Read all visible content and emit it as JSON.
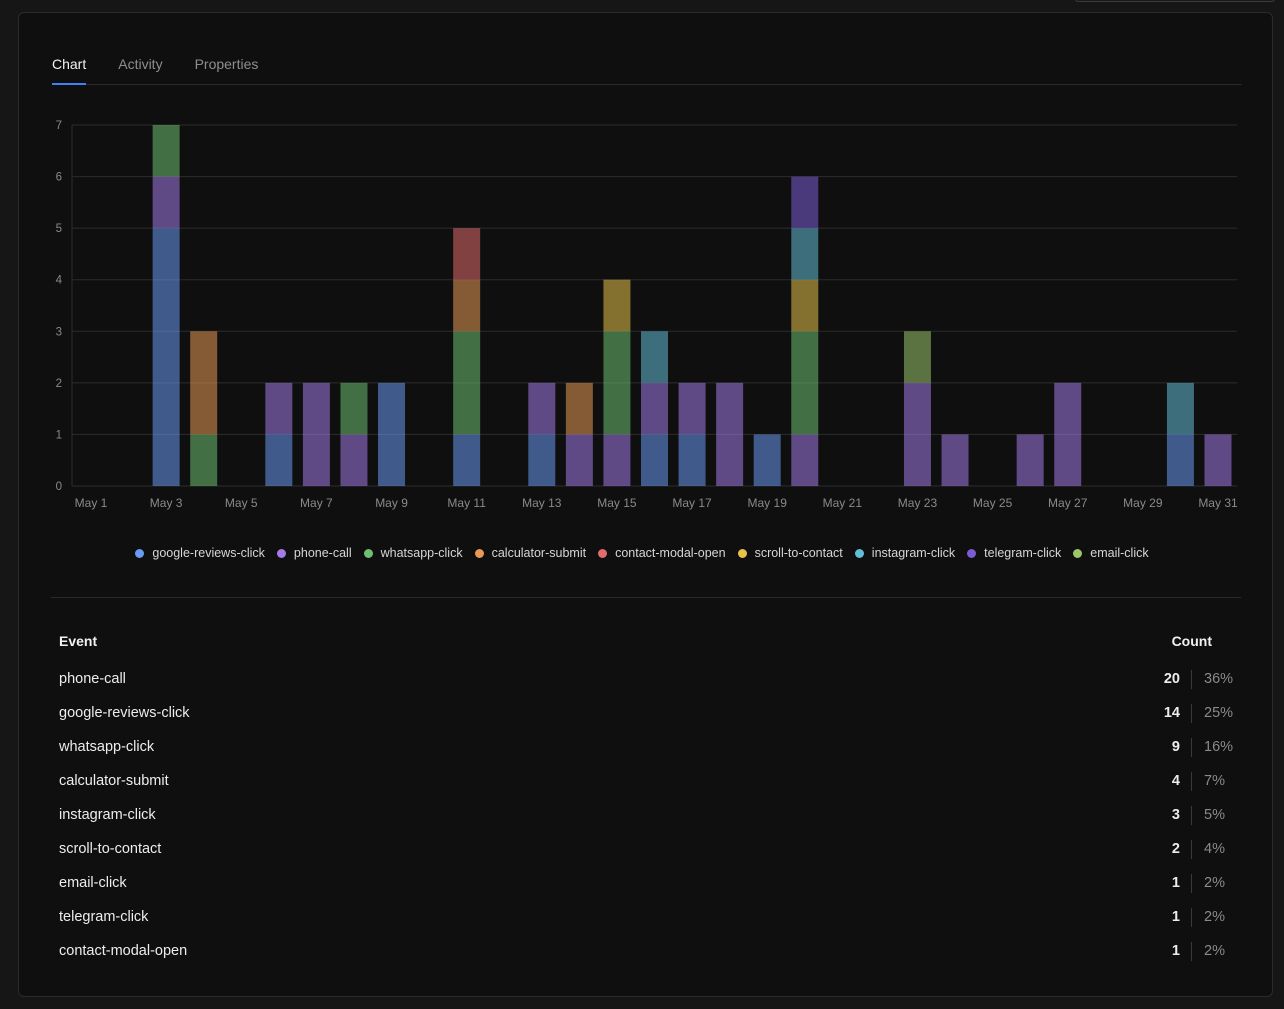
{
  "tabs": [
    {
      "label": "Chart",
      "active": true
    },
    {
      "label": "Activity",
      "active": false
    },
    {
      "label": "Properties",
      "active": false
    }
  ],
  "series_colors": {
    "google-reviews-click": "#6a9bf2",
    "phone-call": "#a37ce8",
    "whatsapp-click": "#6fbf73",
    "calculator-submit": "#e89a55",
    "contact-modal-open": "#e06c6c",
    "scroll-to-contact": "#e8c24a",
    "instagram-click": "#62bdd6",
    "telegram-click": "#7b5cd6",
    "email-click": "#9bc76a"
  },
  "chart_data": {
    "type": "bar",
    "stacked": true,
    "ylim": [
      0,
      7
    ],
    "yticks": [
      0,
      1,
      2,
      3,
      4,
      5,
      6,
      7
    ],
    "categories": [
      "May 1",
      "May 2",
      "May 3",
      "May 4",
      "May 5",
      "May 6",
      "May 7",
      "May 8",
      "May 9",
      "May 10",
      "May 11",
      "May 12",
      "May 13",
      "May 14",
      "May 15",
      "May 16",
      "May 17",
      "May 18",
      "May 19",
      "May 20",
      "May 21",
      "May 22",
      "May 23",
      "May 24",
      "May 25",
      "May 26",
      "May 27",
      "May 28",
      "May 29",
      "May 30",
      "May 31"
    ],
    "xtick_labels": [
      "May 1",
      "May 3",
      "May 5",
      "May 7",
      "May 9",
      "May 11",
      "May 13",
      "May 15",
      "May 17",
      "May 19",
      "May 21",
      "May 23",
      "May 25",
      "May 27",
      "May 29",
      "May 31"
    ],
    "grid": true,
    "legend_position": "bottom",
    "series": [
      {
        "name": "google-reviews-click",
        "values": [
          0,
          0,
          5,
          0,
          0,
          1,
          0,
          0,
          2,
          0,
          1,
          0,
          1,
          0,
          0,
          1,
          1,
          0,
          1,
          0,
          0,
          0,
          0,
          0,
          0,
          0,
          0,
          0,
          0,
          1,
          0
        ]
      },
      {
        "name": "phone-call",
        "values": [
          0,
          0,
          1,
          0,
          0,
          1,
          2,
          1,
          0,
          0,
          0,
          0,
          1,
          1,
          1,
          1,
          1,
          2,
          0,
          1,
          0,
          0,
          2,
          1,
          0,
          1,
          2,
          0,
          0,
          0,
          1
        ]
      },
      {
        "name": "whatsapp-click",
        "values": [
          0,
          0,
          1,
          1,
          0,
          0,
          0,
          1,
          0,
          0,
          2,
          0,
          0,
          0,
          2,
          0,
          0,
          0,
          0,
          2,
          0,
          0,
          0,
          0,
          0,
          0,
          0,
          0,
          0,
          0,
          0
        ]
      },
      {
        "name": "calculator-submit",
        "values": [
          0,
          0,
          0,
          2,
          0,
          0,
          0,
          0,
          0,
          0,
          1,
          0,
          0,
          1,
          0,
          0,
          0,
          0,
          0,
          0,
          0,
          0,
          0,
          0,
          0,
          0,
          0,
          0,
          0,
          0,
          0
        ]
      },
      {
        "name": "contact-modal-open",
        "values": [
          0,
          0,
          0,
          0,
          0,
          0,
          0,
          0,
          0,
          0,
          1,
          0,
          0,
          0,
          0,
          0,
          0,
          0,
          0,
          0,
          0,
          0,
          0,
          0,
          0,
          0,
          0,
          0,
          0,
          0,
          0
        ]
      },
      {
        "name": "scroll-to-contact",
        "values": [
          0,
          0,
          0,
          0,
          0,
          0,
          0,
          0,
          0,
          0,
          0,
          0,
          0,
          0,
          1,
          0,
          0,
          0,
          0,
          1,
          0,
          0,
          0,
          0,
          0,
          0,
          0,
          0,
          0,
          0,
          0
        ]
      },
      {
        "name": "instagram-click",
        "values": [
          0,
          0,
          0,
          0,
          0,
          0,
          0,
          0,
          0,
          0,
          0,
          0,
          0,
          0,
          0,
          1,
          0,
          0,
          0,
          1,
          0,
          0,
          0,
          0,
          0,
          0,
          0,
          0,
          0,
          1,
          0
        ]
      },
      {
        "name": "telegram-click",
        "values": [
          0,
          0,
          0,
          0,
          0,
          0,
          0,
          0,
          0,
          0,
          0,
          0,
          0,
          0,
          0,
          0,
          0,
          0,
          0,
          1,
          0,
          0,
          0,
          0,
          0,
          0,
          0,
          0,
          0,
          0,
          0
        ]
      },
      {
        "name": "email-click",
        "values": [
          0,
          0,
          0,
          0,
          0,
          0,
          0,
          0,
          0,
          0,
          0,
          0,
          0,
          0,
          0,
          0,
          0,
          0,
          0,
          0,
          0,
          0,
          1,
          0,
          0,
          0,
          0,
          0,
          0,
          0,
          0
        ]
      }
    ]
  },
  "table": {
    "headers": {
      "event": "Event",
      "count": "Count"
    },
    "rows": [
      {
        "event": "phone-call",
        "count": "20",
        "pct": "36%"
      },
      {
        "event": "google-reviews-click",
        "count": "14",
        "pct": "25%"
      },
      {
        "event": "whatsapp-click",
        "count": "9",
        "pct": "16%"
      },
      {
        "event": "calculator-submit",
        "count": "4",
        "pct": "7%"
      },
      {
        "event": "instagram-click",
        "count": "3",
        "pct": "5%"
      },
      {
        "event": "scroll-to-contact",
        "count": "2",
        "pct": "4%"
      },
      {
        "event": "email-click",
        "count": "1",
        "pct": "2%"
      },
      {
        "event": "telegram-click",
        "count": "1",
        "pct": "2%"
      },
      {
        "event": "contact-modal-open",
        "count": "1",
        "pct": "2%"
      }
    ]
  }
}
